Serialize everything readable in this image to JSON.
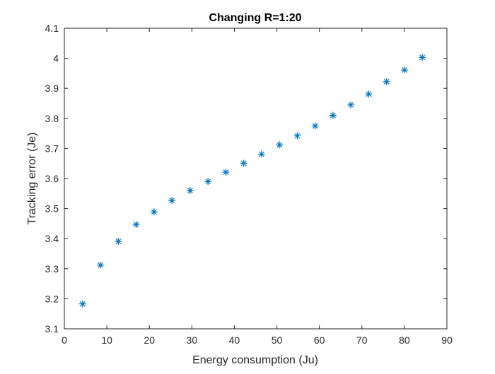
{
  "chart_data": {
    "type": "scatter",
    "title": "Changing R=1:20",
    "xlabel": "Energy consumption (Ju)",
    "ylabel": "Tracking error (Je)",
    "xlim": [
      0,
      90
    ],
    "ylim": [
      3.1,
      4.1
    ],
    "xticks": [
      0,
      10,
      20,
      30,
      40,
      50,
      60,
      70,
      80,
      90
    ],
    "xtick_labels": [
      "0",
      "10",
      "20",
      "30",
      "40",
      "50",
      "60",
      "70",
      "80",
      "90"
    ],
    "yticks": [
      3.1,
      3.2,
      3.3,
      3.4,
      3.5,
      3.6,
      3.7,
      3.8,
      3.9,
      4.0,
      4.1
    ],
    "ytick_labels": [
      "3.1",
      "3.2",
      "3.3",
      "3.4",
      "3.5",
      "3.6",
      "3.7",
      "3.8",
      "3.9",
      "4",
      "4.1"
    ],
    "grid": false,
    "marker": "asterisk",
    "marker_color": "#0072BD",
    "series": [
      {
        "x": [
          4.3,
          8.5,
          12.7,
          16.9,
          21.1,
          25.3,
          29.6,
          33.8,
          38.0,
          42.2,
          46.4,
          50.6,
          54.8,
          59.0,
          63.2,
          67.4,
          71.6,
          75.8,
          80.0,
          84.2
        ],
        "y": [
          3.183,
          3.312,
          3.391,
          3.447,
          3.489,
          3.527,
          3.56,
          3.59,
          3.621,
          3.651,
          3.681,
          3.712,
          3.742,
          3.775,
          3.81,
          3.845,
          3.881,
          3.922,
          3.961,
          4.003
        ]
      }
    ]
  }
}
